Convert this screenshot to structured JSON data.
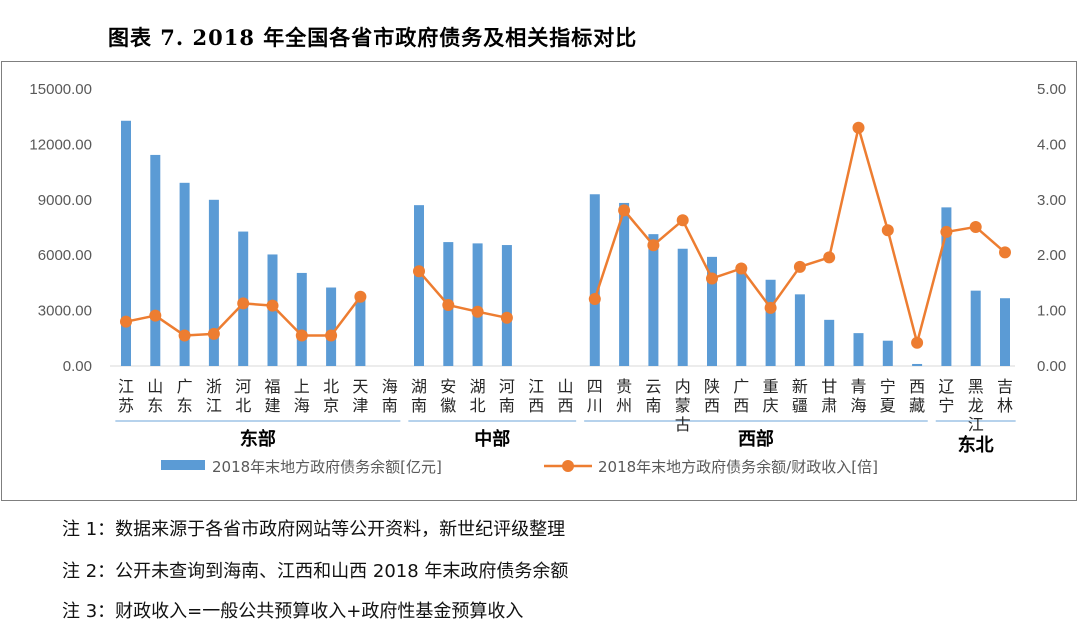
{
  "title": "图表 7.   2018 年全国各省市政府债务及相关指标对比",
  "notes": [
    "注 1：数据来源于各省市政府网站等公开资料，新世纪评级整理",
    "注 2：公开未查询到海南、江西和山西 2018 年末政府债务余额",
    "注 3：财政收入=一般公共预算收入+政府性基金预算收入"
  ],
  "colors": {
    "bar": "#5b9bd5",
    "line": "#ed7d31",
    "axis_text": "#595959",
    "region_line": "#9dc3e6"
  },
  "chart_data": {
    "type": "bar",
    "categories": [
      "江苏",
      "山东",
      "广东",
      "浙江",
      "河北",
      "福建",
      "上海",
      "北京",
      "天津",
      "海南",
      "湖南",
      "安徽",
      "湖北",
      "河南",
      "江西",
      "山西",
      "四川",
      "贵州",
      "云南",
      "内蒙古",
      "陕西",
      "广西",
      "重庆",
      "新疆",
      "甘肃",
      "青海",
      "宁夏",
      "西藏",
      "辽宁",
      "黑龙江",
      "吉林"
    ],
    "regions": [
      {
        "name": "东部",
        "start": 0,
        "end": 9
      },
      {
        "name": "中部",
        "start": 10,
        "end": 15
      },
      {
        "name": "西部",
        "start": 16,
        "end": 27
      },
      {
        "name": "东北",
        "start": 28,
        "end": 30
      }
    ],
    "series": [
      {
        "name": "2018年末地方政府债务余额[亿元]",
        "type": "bar",
        "axis": "left",
        "values": [
          13280,
          11430,
          9920,
          9000,
          7280,
          6040,
          5040,
          4250,
          3670,
          null,
          8710,
          6710,
          6640,
          6550,
          null,
          null,
          9300,
          8830,
          7140,
          6350,
          5910,
          5430,
          4670,
          3880,
          2500,
          1780,
          1370,
          110,
          8590,
          4080,
          3670
        ]
      },
      {
        "name": "2018年末地方政府债务余额/财政收入[倍]",
        "type": "line",
        "axis": "right",
        "values": [
          0.8,
          0.91,
          0.55,
          0.58,
          1.13,
          1.09,
          0.55,
          0.55,
          1.25,
          null,
          1.71,
          1.1,
          0.98,
          0.87,
          null,
          null,
          1.21,
          2.81,
          2.18,
          2.63,
          1.58,
          1.76,
          1.05,
          1.79,
          1.96,
          4.3,
          2.45,
          0.42,
          2.42,
          2.51,
          2.05
        ]
      }
    ],
    "yleft": {
      "min": 0,
      "max": 15000,
      "ticks": [
        "0.00",
        "3000.00",
        "6000.00",
        "9000.00",
        "12000.00",
        "15000.00"
      ]
    },
    "yright": {
      "min": 0,
      "max": 5,
      "ticks": [
        "0.00",
        "1.00",
        "2.00",
        "3.00",
        "4.00",
        "5.00"
      ]
    },
    "grid": false,
    "legend": "bottom"
  }
}
